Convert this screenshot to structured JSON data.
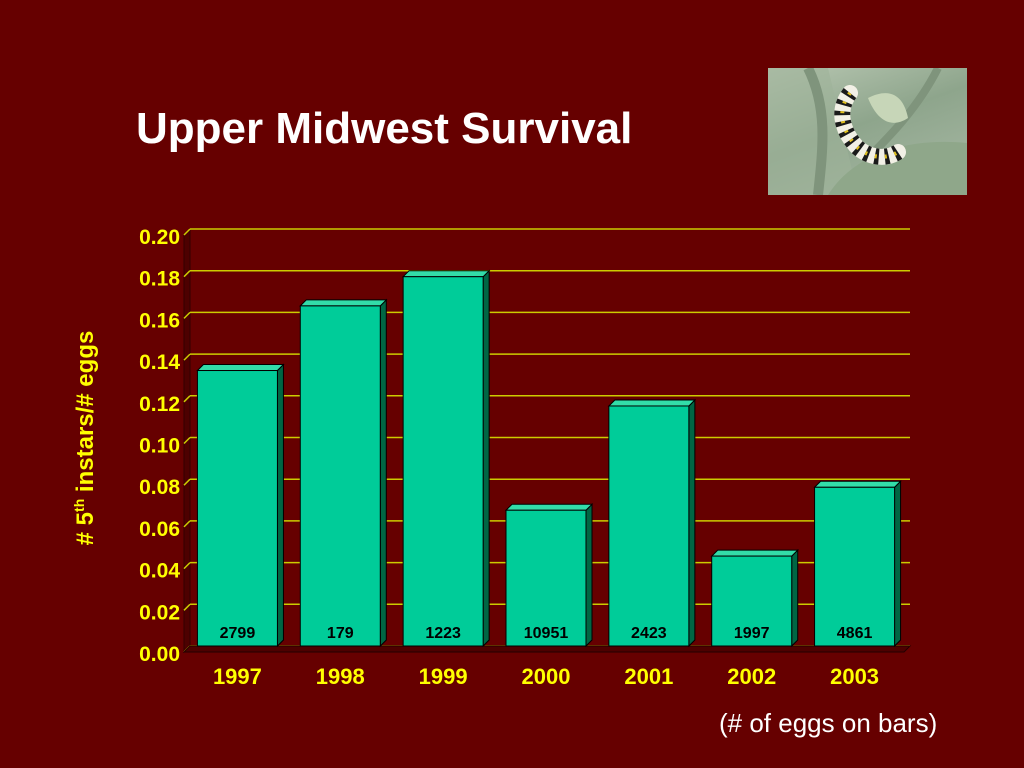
{
  "title": "Upper Midwest Survival",
  "ylabel": {
    "prefix": "# 5",
    "sup": "th",
    "suffix": " instars/# eggs"
  },
  "note": "(# of eggs on bars)",
  "photo": {
    "icon": "caterpillar-photo"
  },
  "colors": {
    "background": "#660000",
    "bar_front": "#00cc99",
    "bar_top": "#33dda9",
    "bar_side": "#006644",
    "gridline": "#cccc00",
    "axis_text": "#ffff00",
    "bar_label": "#000000"
  },
  "chart_data": {
    "type": "bar",
    "categories": [
      "1997",
      "1998",
      "1999",
      "2000",
      "2001",
      "2002",
      "2003"
    ],
    "values": [
      0.135,
      0.166,
      0.18,
      0.068,
      0.118,
      0.046,
      0.079
    ],
    "bar_labels": [
      "2799",
      "179",
      "1223",
      "10951",
      "2423",
      "1997",
      "4861"
    ],
    "ylim": [
      0,
      0.2
    ],
    "yticks": [
      "0.00",
      "0.02",
      "0.04",
      "0.06",
      "0.08",
      "0.10",
      "0.12",
      "0.14",
      "0.16",
      "0.18",
      "0.20"
    ],
    "grid": true,
    "legend": "none"
  }
}
